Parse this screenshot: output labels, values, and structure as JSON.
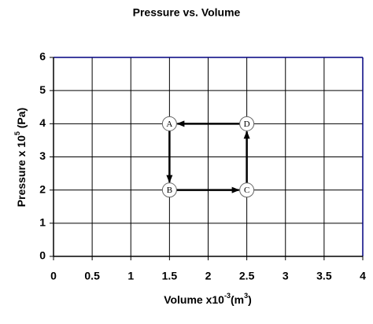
{
  "chart_data": {
    "type": "scatter",
    "title": "Pressure vs. Volume",
    "xlabel": [
      "Volume x10",
      "-3",
      "(m",
      "3",
      ")"
    ],
    "ylabel": [
      "Pressure x 10",
      "5",
      " (Pa)"
    ],
    "x": [
      1.5,
      1.5,
      2.5,
      2.5
    ],
    "values": [
      4,
      2,
      2,
      4
    ],
    "point_labels": [
      "A",
      "B",
      "C",
      "D"
    ],
    "xlim": [
      0,
      4
    ],
    "xticks": [
      0,
      0.5,
      1,
      1.5,
      2,
      2.5,
      3,
      3.5,
      4
    ],
    "ylim": [
      0,
      6
    ],
    "yticks": [
      0,
      1,
      2,
      3,
      4,
      5,
      6
    ],
    "grid": true,
    "color": "#000000"
  }
}
